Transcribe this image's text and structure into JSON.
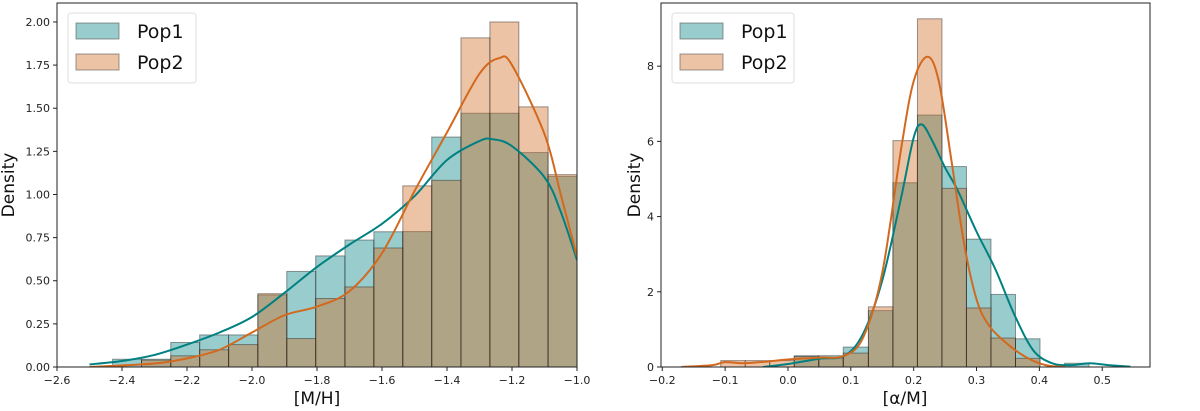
{
  "colors": {
    "Pop1": "#008080",
    "Pop2": "#d2691e"
  },
  "chart_data": [
    {
      "type": "bar",
      "subtype": "histogram with kde",
      "xlabel": "[M/H]",
      "ylabel": "Density",
      "xlim": [
        -2.6,
        -1.0
      ],
      "ylim": [
        0,
        2.11
      ],
      "xticks": [
        "−2.6",
        "−2.4",
        "−2.2",
        "−2.0",
        "−1.8",
        "−1.6",
        "−1.4",
        "−1.2",
        "−1.0"
      ],
      "xtick_values": [
        -2.6,
        -2.4,
        -2.2,
        -2.0,
        -1.8,
        -1.6,
        -1.4,
        -1.2,
        -1.0
      ],
      "yticks": [
        "0.00",
        "0.25",
        "0.50",
        "0.75",
        "1.00",
        "1.25",
        "1.50",
        "1.75",
        "2.00"
      ],
      "ytick_values": [
        0,
        0.25,
        0.5,
        0.75,
        1.0,
        1.25,
        1.5,
        1.75,
        2.0
      ],
      "legend": {
        "placement": "top-left",
        "entries": [
          "Pop1",
          "Pop2"
        ]
      },
      "grid": false,
      "bin_edges": [
        -2.429,
        -2.34,
        -2.25,
        -2.161,
        -2.072,
        -1.982,
        -1.893,
        -1.804,
        -1.714,
        -1.625,
        -1.536,
        -1.447,
        -1.357,
        -1.268,
        -1.179,
        -1.089,
        -1.0
      ],
      "series": [
        {
          "name": "Pop1",
          "values": [
            0.045,
            0.045,
            0.142,
            0.186,
            0.186,
            0.418,
            0.554,
            0.644,
            0.736,
            0.784,
            0.785,
            1.333,
            1.471,
            1.471,
            1.243,
            1.105
          ],
          "kde": [
            [
              -2.5,
              0.015
            ],
            [
              -2.4,
              0.035
            ],
            [
              -2.3,
              0.07
            ],
            [
              -2.2,
              0.13
            ],
            [
              -2.1,
              0.2
            ],
            [
              -2.0,
              0.29
            ],
            [
              -1.9,
              0.43
            ],
            [
              -1.8,
              0.58
            ],
            [
              -1.7,
              0.71
            ],
            [
              -1.6,
              0.83
            ],
            [
              -1.5,
              0.99
            ],
            [
              -1.4,
              1.2
            ],
            [
              -1.3,
              1.31
            ],
            [
              -1.26,
              1.32
            ],
            [
              -1.2,
              1.28
            ],
            [
              -1.1,
              1.1
            ],
            [
              -1.05,
              0.9
            ],
            [
              -1.0,
              0.62
            ]
          ]
        },
        {
          "name": "Pop2",
          "values": [
            0.0,
            0.04,
            0.065,
            0.1,
            0.13,
            0.425,
            0.165,
            0.397,
            0.464,
            0.69,
            1.05,
            1.082,
            1.908,
            2.0,
            1.508,
            1.115
          ],
          "kde": [
            [
              -2.5,
              0.0
            ],
            [
              -2.3,
              0.02
            ],
            [
              -2.2,
              0.05
            ],
            [
              -2.1,
              0.1
            ],
            [
              -2.0,
              0.2
            ],
            [
              -1.9,
              0.3
            ],
            [
              -1.8,
              0.35
            ],
            [
              -1.7,
              0.44
            ],
            [
              -1.6,
              0.66
            ],
            [
              -1.5,
              1.02
            ],
            [
              -1.4,
              1.36
            ],
            [
              -1.3,
              1.7
            ],
            [
              -1.24,
              1.79
            ],
            [
              -1.2,
              1.75
            ],
            [
              -1.1,
              1.35
            ],
            [
              -1.05,
              1.0
            ],
            [
              -1.0,
              0.64
            ]
          ]
        }
      ]
    },
    {
      "type": "bar",
      "subtype": "histogram with kde",
      "xlabel": "[α/M]",
      "ylabel": "Density",
      "xlim": [
        -0.202,
        0.576
      ],
      "ylim": [
        0,
        9.68
      ],
      "xticks": [
        "−0.2",
        "−0.1",
        "0.0",
        "0.1",
        "0.2",
        "0.3",
        "0.4",
        "0.5"
      ],
      "xtick_values": [
        -0.2,
        -0.1,
        0.0,
        0.1,
        0.2,
        0.3,
        0.4,
        0.5
      ],
      "yticks": [
        "0",
        "2",
        "4",
        "6",
        "8"
      ],
      "ytick_values": [
        0,
        2,
        4,
        6,
        8
      ],
      "legend": {
        "placement": "top-left",
        "entries": [
          "Pop1",
          "Pop2"
        ]
      },
      "grid": false,
      "bin_edges": [
        -0.107,
        -0.068,
        -0.029,
        0.01,
        0.049,
        0.088,
        0.128,
        0.167,
        0.206,
        0.245,
        0.284,
        0.323,
        0.362,
        0.401,
        0.44,
        0.479
      ],
      "series": [
        {
          "name": "Pop1",
          "values": [
            0,
            0,
            0,
            0.3,
            0.3,
            0.53,
            1.5,
            4.9,
            6.7,
            5.33,
            3.4,
            1.93,
            0.75,
            0,
            0.1
          ],
          "kde": [
            [
              -0.04,
              0.0
            ],
            [
              0.0,
              0.08
            ],
            [
              0.05,
              0.22
            ],
            [
              0.09,
              0.3
            ],
            [
              0.12,
              0.9
            ],
            [
              0.15,
              2.3
            ],
            [
              0.18,
              4.5
            ],
            [
              0.2,
              6.1
            ],
            [
              0.213,
              6.45
            ],
            [
              0.23,
              6.0
            ],
            [
              0.25,
              5.3
            ],
            [
              0.27,
              4.7
            ],
            [
              0.3,
              3.6
            ],
            [
              0.33,
              2.6
            ],
            [
              0.36,
              1.4
            ],
            [
              0.39,
              0.45
            ],
            [
              0.42,
              0.1
            ],
            [
              0.45,
              0.05
            ],
            [
              0.48,
              0.1
            ],
            [
              0.51,
              0.05
            ],
            [
              0.545,
              0.01
            ]
          ]
        },
        {
          "name": "Pop2",
          "values": [
            0.17,
            0.17,
            0.17,
            0.28,
            0.24,
            0.37,
            1.6,
            6.02,
            9.26,
            4.75,
            1.57,
            0.77,
            0.23,
            0,
            0
          ],
          "kde": [
            [
              -0.17,
              0.0
            ],
            [
              -0.12,
              0.05
            ],
            [
              -0.1,
              0.13
            ],
            [
              -0.07,
              0.1
            ],
            [
              -0.03,
              0.15
            ],
            [
              0.0,
              0.2
            ],
            [
              0.05,
              0.25
            ],
            [
              0.09,
              0.3
            ],
            [
              0.12,
              0.8
            ],
            [
              0.15,
              2.5
            ],
            [
              0.18,
              5.8
            ],
            [
              0.2,
              7.6
            ],
            [
              0.222,
              8.25
            ],
            [
              0.24,
              7.6
            ],
            [
              0.26,
              5.5
            ],
            [
              0.28,
              3.3
            ],
            [
              0.3,
              1.8
            ],
            [
              0.32,
              1.1
            ],
            [
              0.35,
              0.6
            ],
            [
              0.38,
              0.25
            ],
            [
              0.41,
              0.05
            ],
            [
              0.44,
              0.0
            ]
          ]
        }
      ]
    }
  ]
}
